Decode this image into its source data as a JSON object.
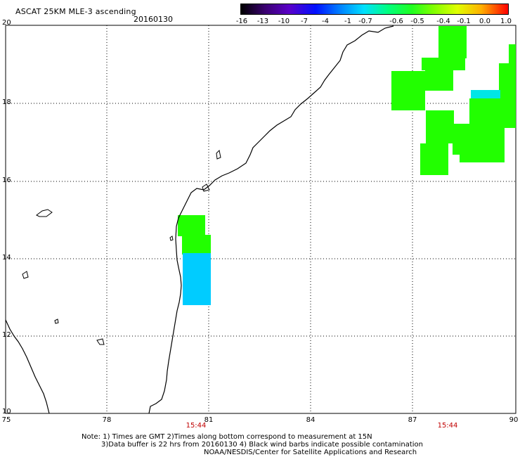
{
  "header": {
    "title": "ASCAT 25KM MLE-3 ascending",
    "date": "20160130"
  },
  "color_scale": {
    "labels": [
      "-16",
      "-13",
      "-10",
      "-7",
      "-4",
      "-1",
      "-0.7",
      "-0.6",
      "-0.5",
      "-0.4",
      "-0.1",
      "0.0",
      "1.0"
    ]
  },
  "map": {
    "lat_labels": [
      "20",
      "18",
      "16",
      "14",
      "12",
      "10"
    ],
    "lon_labels": [
      "75",
      "78",
      "81",
      "84",
      "87",
      "90"
    ],
    "pass_times": [
      "15:44",
      "15:44"
    ],
    "colors": {
      "green": "#22ff00",
      "cyan": "#00ccff",
      "teal": "#00e6e6",
      "coast": "#000000",
      "grid": "#000000"
    }
  },
  "footer": {
    "line1": "Note: 1) Times are GMT 2)Times along bottom correspond to measurement at 15N",
    "line2": "3)Data buffer is 22 hrs from 20160130 4) Black wind barbs indicate possible contamination",
    "line3": "NOAA/NESDIS/Center for Satellite Applications and Research"
  }
}
